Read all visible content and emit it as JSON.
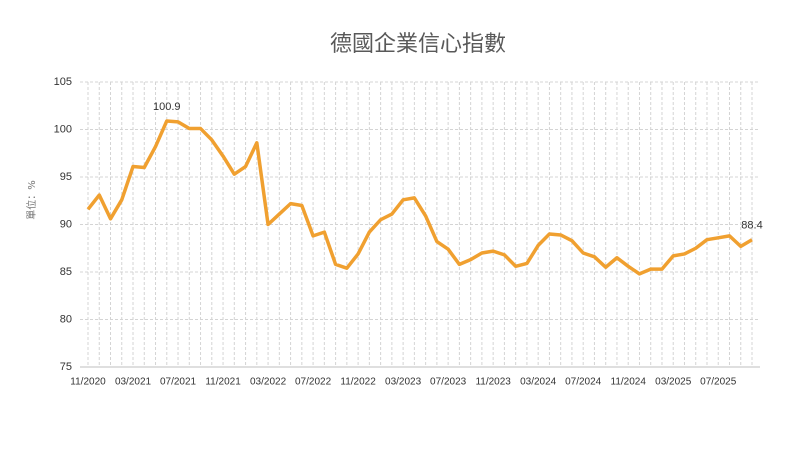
{
  "chart_data": {
    "type": "line",
    "title": "德國企業信心指數",
    "y_label": "單位：%",
    "categories": [
      "11/2020",
      null,
      null,
      null,
      "03/2021",
      null,
      null,
      null,
      "07/2021",
      null,
      null,
      null,
      "11/2021",
      null,
      null,
      null,
      "03/2022",
      null,
      null,
      null,
      "07/2022",
      null,
      null,
      null,
      "11/2022",
      null,
      null,
      null,
      "03/2023",
      null,
      null,
      null,
      "07/2023",
      null,
      null,
      null,
      "11/2023",
      null,
      null,
      null,
      "03/2024",
      null,
      null,
      null,
      "07/2024",
      null,
      null,
      null,
      "11/2024",
      null,
      null,
      null,
      "03/2025",
      null,
      null,
      null,
      "07/2025",
      null,
      null,
      null
    ],
    "values": [
      91.6,
      93.1,
      90.6,
      92.6,
      96.1,
      96.0,
      98.2,
      100.9,
      100.8,
      100.1,
      100.1,
      98.9,
      97.2,
      95.3,
      96.1,
      98.6,
      90.0,
      91.1,
      92.2,
      92.0,
      88.8,
      89.2,
      85.8,
      85.4,
      86.9,
      89.2,
      90.5,
      91.1,
      92.6,
      92.8,
      90.9,
      88.2,
      87.4,
      85.8,
      86.3,
      87.0,
      87.2,
      86.8,
      85.6,
      85.9,
      87.8,
      89.0,
      88.9,
      88.3,
      87.0,
      86.6,
      85.5,
      86.5,
      85.6,
      84.8,
      85.3,
      85.3,
      86.7,
      86.9,
      87.5,
      88.4,
      88.6,
      88.8,
      87.7,
      88.4
    ],
    "value_label_indices": [
      7,
      59
    ],
    "color": "#f0a030",
    "ylim": [
      75,
      105
    ],
    "yticks": [
      75,
      80,
      85,
      90,
      95,
      100,
      105
    ],
    "grid": true
  }
}
